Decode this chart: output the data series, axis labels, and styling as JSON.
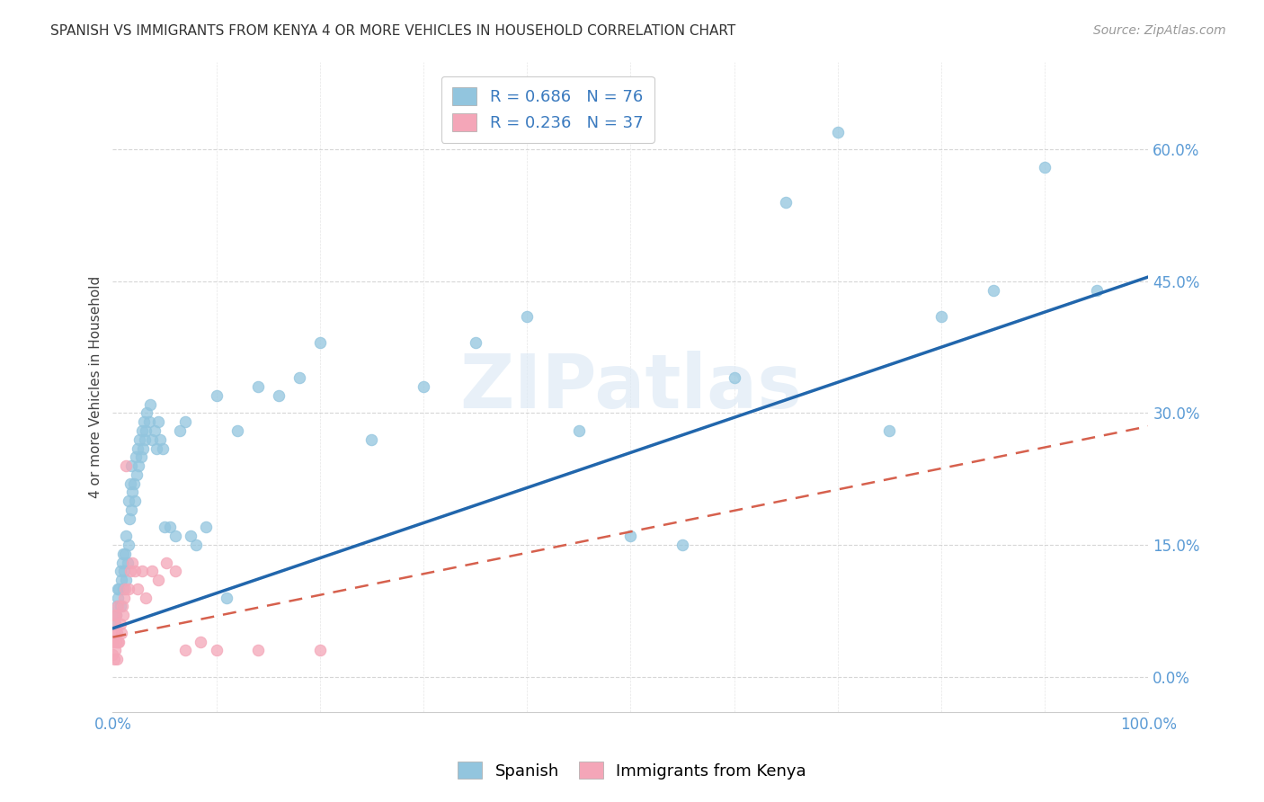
{
  "title": "SPANISH VS IMMIGRANTS FROM KENYA 4 OR MORE VEHICLES IN HOUSEHOLD CORRELATION CHART",
  "source": "Source: ZipAtlas.com",
  "ylabel": "4 or more Vehicles in Household",
  "xlim": [
    0.0,
    1.0
  ],
  "ylim": [
    -0.04,
    0.7
  ],
  "blue_color": "#92c5de",
  "pink_color": "#f4a6b8",
  "blue_line_color": "#2166ac",
  "pink_line_color": "#d6604d",
  "watermark": "ZIPatlas",
  "background_color": "#ffffff",
  "grid_color": "#cccccc",
  "axis_label_color": "#5b9bd5",
  "ytick_values": [
    0.0,
    0.15,
    0.3,
    0.45,
    0.6
  ],
  "sp_x": [
    0.002,
    0.003,
    0.004,
    0.005,
    0.005,
    0.006,
    0.007,
    0.007,
    0.008,
    0.009,
    0.01,
    0.01,
    0.011,
    0.012,
    0.013,
    0.013,
    0.014,
    0.015,
    0.015,
    0.016,
    0.017,
    0.018,
    0.018,
    0.019,
    0.02,
    0.021,
    0.022,
    0.023,
    0.024,
    0.025,
    0.026,
    0.027,
    0.028,
    0.029,
    0.03,
    0.031,
    0.032,
    0.033,
    0.035,
    0.036,
    0.038,
    0.04,
    0.042,
    0.044,
    0.046,
    0.048,
    0.05,
    0.055,
    0.06,
    0.065,
    0.07,
    0.075,
    0.08,
    0.09,
    0.1,
    0.11,
    0.12,
    0.14,
    0.16,
    0.18,
    0.2,
    0.25,
    0.3,
    0.35,
    0.4,
    0.45,
    0.5,
    0.55,
    0.6,
    0.65,
    0.7,
    0.75,
    0.8,
    0.85,
    0.9,
    0.95
  ],
  "sp_y": [
    0.06,
    0.07,
    0.08,
    0.09,
    0.1,
    0.1,
    0.08,
    0.12,
    0.11,
    0.13,
    0.1,
    0.14,
    0.12,
    0.14,
    0.11,
    0.16,
    0.13,
    0.15,
    0.2,
    0.18,
    0.22,
    0.19,
    0.24,
    0.21,
    0.22,
    0.2,
    0.25,
    0.23,
    0.26,
    0.24,
    0.27,
    0.25,
    0.28,
    0.26,
    0.29,
    0.27,
    0.28,
    0.3,
    0.29,
    0.31,
    0.27,
    0.28,
    0.26,
    0.29,
    0.27,
    0.26,
    0.17,
    0.17,
    0.16,
    0.28,
    0.29,
    0.16,
    0.15,
    0.17,
    0.32,
    0.09,
    0.28,
    0.33,
    0.32,
    0.34,
    0.38,
    0.27,
    0.33,
    0.38,
    0.41,
    0.28,
    0.16,
    0.15,
    0.34,
    0.54,
    0.62,
    0.28,
    0.41,
    0.44,
    0.58,
    0.44
  ],
  "ke_x": [
    0.0,
    0.0,
    0.001,
    0.001,
    0.001,
    0.002,
    0.002,
    0.003,
    0.003,
    0.004,
    0.004,
    0.005,
    0.005,
    0.006,
    0.007,
    0.008,
    0.009,
    0.01,
    0.011,
    0.012,
    0.013,
    0.015,
    0.017,
    0.019,
    0.021,
    0.024,
    0.028,
    0.032,
    0.038,
    0.044,
    0.052,
    0.06,
    0.07,
    0.085,
    0.1,
    0.14,
    0.2
  ],
  "ke_y": [
    0.025,
    0.04,
    0.02,
    0.05,
    0.07,
    0.03,
    0.06,
    0.04,
    0.07,
    0.02,
    0.05,
    0.04,
    0.08,
    0.04,
    0.06,
    0.05,
    0.08,
    0.07,
    0.09,
    0.1,
    0.24,
    0.1,
    0.12,
    0.13,
    0.12,
    0.1,
    0.12,
    0.09,
    0.12,
    0.11,
    0.13,
    0.12,
    0.03,
    0.04,
    0.03,
    0.03,
    0.03
  ],
  "sp_trend_x": [
    0.0,
    1.0
  ],
  "sp_trend_y": [
    0.055,
    0.455
  ],
  "ke_trend_x": [
    0.0,
    1.0
  ],
  "ke_trend_y": [
    0.045,
    0.285
  ]
}
